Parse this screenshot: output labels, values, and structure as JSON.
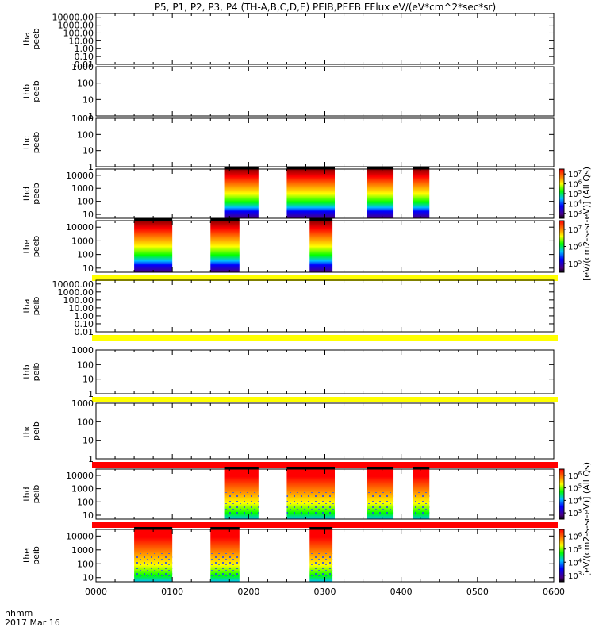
{
  "title": "P5, P1, P2, P3, P4 (TH-A,B,C,D,E) PEIB,PEEB EFlux eV/(eV*cm^2*sec*sr)",
  "time_axis": {
    "label_top": "hhmm",
    "label_bottom": "2017 Mar 16",
    "ticks": [
      "0000",
      "0100",
      "0200",
      "0300",
      "0400",
      "0500",
      "0600"
    ],
    "range_hours": [
      0,
      6
    ]
  },
  "colorbar_labels": {
    "electron": "[eV/(cm2-s-sr-eV)]  (All Qs)",
    "ion": "[eV/(cm2-s-sr-eV)]  (All Qs)"
  },
  "colors": {
    "scale": [
      "#4b0082",
      "#0000ff",
      "#00bfff",
      "#00ff00",
      "#ffff00",
      "#ff8c00",
      "#ff0000",
      "#8b0000"
    ],
    "flag_yellow": "#ffff00",
    "flag_red": "#ff0000"
  },
  "chart_data": {
    "type": "heatmap",
    "title": "P5, P1, P2, P3, P4 (TH-A,B,C,D,E) PEIB,PEEB EFlux eV/(eV*cm^2*sec*sr)",
    "xlabel": "hhmm",
    "x_unit": "hours since 2017-03-16 00:00",
    "xlim": [
      0,
      6
    ],
    "log_y": true,
    "panels": [
      {
        "label1": "tha",
        "label2": "peeb",
        "ylim": [
          0.01,
          30000
        ],
        "yticks": [
          "10000.00",
          "1000.00",
          "100.00",
          "10.00",
          "1.00",
          "0.10",
          "0.01"
        ],
        "blocks": [],
        "flag": null
      },
      {
        "label1": "thb",
        "label2": "peeb",
        "ylim": [
          1,
          1000
        ],
        "yticks": [
          "1000",
          "100",
          "10",
          "1"
        ],
        "blocks": [],
        "flag": null
      },
      {
        "label1": "thc",
        "label2": "peeb",
        "ylim": [
          1,
          1000
        ],
        "yticks": [
          "1000",
          "100",
          "10",
          "1"
        ],
        "blocks": [],
        "flag": null
      },
      {
        "label1": "thd",
        "label2": "peeb",
        "ylim": [
          5,
          30000
        ],
        "yticks": [
          "10000",
          "1000",
          "100",
          "10"
        ],
        "cbar_ticks": [
          "10^3",
          "10^4",
          "10^5",
          "10^6",
          "10^7"
        ],
        "species": "electron",
        "flag": null,
        "blocks": [
          [
            1.68,
            2.13
          ],
          [
            2.5,
            3.13
          ],
          [
            3.55,
            3.9
          ],
          [
            4.15,
            4.37
          ]
        ]
      },
      {
        "label1": "the",
        "label2": "peeb",
        "ylim": [
          5,
          30000
        ],
        "yticks": [
          "10000",
          "1000",
          "100",
          "10"
        ],
        "cbar_ticks": [
          "10^5",
          "10^6",
          "10^7"
        ],
        "species": "electron",
        "flag": "yellow",
        "blocks": [
          [
            0.5,
            1.0
          ],
          [
            1.5,
            1.88
          ],
          [
            2.8,
            3.1
          ]
        ]
      },
      {
        "label1": "tha",
        "label2": "peib",
        "ylim": [
          0.01,
          30000
        ],
        "yticks": [
          "10000.00",
          "1000.00",
          "100.00",
          "10.00",
          "1.00",
          "0.10",
          "0.01"
        ],
        "blocks": [],
        "flag": "yellow"
      },
      {
        "label1": "thb",
        "label2": "peib",
        "ylim": [
          1,
          1000
        ],
        "yticks": [
          "1000",
          "100",
          "10",
          "1"
        ],
        "blocks": [],
        "flag": "yellow"
      },
      {
        "label1": "thc",
        "label2": "peib",
        "ylim": [
          1,
          1000
        ],
        "yticks": [
          "1000",
          "100",
          "10",
          "1"
        ],
        "blocks": [],
        "flag": "red"
      },
      {
        "label1": "thd",
        "label2": "peib",
        "ylim": [
          5,
          30000
        ],
        "yticks": [
          "10000",
          "1000",
          "100",
          "10"
        ],
        "cbar_ticks": [
          "10^3",
          "10^4",
          "10^5",
          "10^6"
        ],
        "species": "ion",
        "flag": "red",
        "blocks": [
          [
            1.68,
            2.13
          ],
          [
            2.5,
            3.13
          ],
          [
            3.55,
            3.9
          ],
          [
            4.15,
            4.37
          ]
        ]
      },
      {
        "label1": "the",
        "label2": "peib",
        "ylim": [
          5,
          30000
        ],
        "yticks": [
          "10000",
          "1000",
          "100",
          "10"
        ],
        "cbar_ticks": [
          "10^3",
          "10^4",
          "10^5",
          "10^6"
        ],
        "species": "ion",
        "flag": null,
        "blocks": [
          [
            0.5,
            1.0
          ],
          [
            1.5,
            1.88
          ],
          [
            2.8,
            3.1
          ]
        ]
      }
    ]
  }
}
